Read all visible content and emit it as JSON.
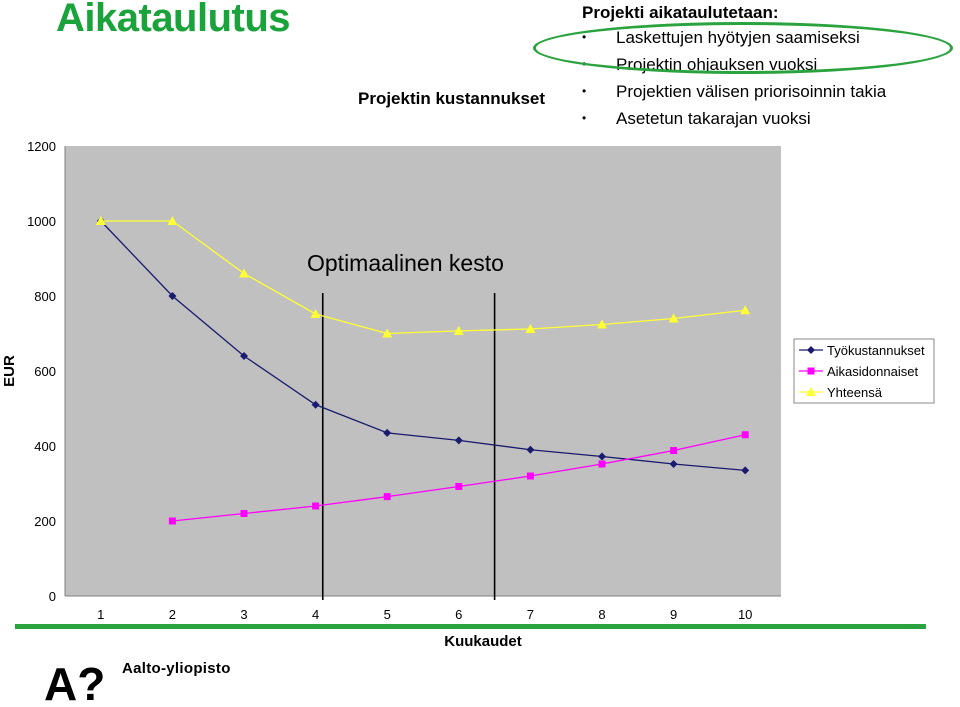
{
  "slide": {
    "title": "Aikataulutus",
    "bullet_heading": "Projekti aikataulutetaan:",
    "bullets": [
      "Laskettujen hyötyjen saamiseksi",
      "Projektin ohjauksen vuoksi",
      "Projektien välisen priorisoinnin takia",
      "Asetetun takarajan vuoksi"
    ],
    "bullet_glyph": "•",
    "annotation": "Optimaalinen kesto",
    "logo_text": "Aalto-yliopisto",
    "logo_mark": "A?"
  },
  "chart_data": {
    "type": "line",
    "title": "Projektin kustannukset",
    "xlabel": "Kuukaudet",
    "ylabel": "EUR",
    "categories": [
      "1",
      "2",
      "3",
      "4",
      "5",
      "6",
      "7",
      "8",
      "9",
      "10"
    ],
    "ylim": [
      0,
      1200
    ],
    "yticks": [
      0,
      200,
      400,
      600,
      800,
      1000,
      1200
    ],
    "legend_position": "right",
    "optimal_range_lines_at": [
      4.1,
      6.5
    ],
    "series": [
      {
        "name": "Työkustannukset",
        "color": "#1a1a6e",
        "marker": "diamond",
        "values": [
          1000,
          800,
          640,
          510,
          435,
          415,
          390,
          372,
          352,
          335
        ]
      },
      {
        "name": "Aikasidonnaiset",
        "color": "#ff00ff",
        "marker": "square",
        "values": [
          null,
          200,
          220,
          240,
          265,
          292,
          320,
          352,
          388,
          430
        ]
      },
      {
        "name": "Yhteensä",
        "color": "#ffff33",
        "marker": "triangle",
        "values": [
          1000,
          1000,
          860,
          752,
          700,
          707,
          712,
          724,
          740,
          762
        ]
      }
    ]
  }
}
